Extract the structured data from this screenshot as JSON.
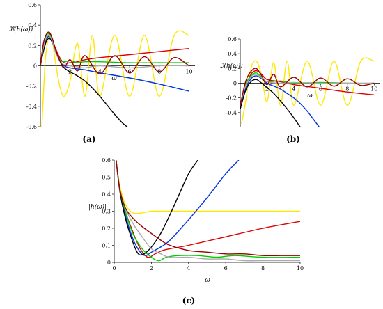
{
  "chart_data": [
    {
      "type": "line",
      "caption": "(a)",
      "ylabel": "ℜ(h(ω))",
      "xlabel": "ω",
      "xlim": [
        0,
        10.4
      ],
      "ylim": [
        -0.6,
        0.6
      ],
      "xticks": [
        2,
        4,
        6,
        8,
        10
      ],
      "yticks": [
        -0.6,
        -0.4,
        -0.2,
        0,
        0.2,
        0.4,
        0.6
      ],
      "series": [
        {
          "color": "#ffe800",
          "x": [
            0.1,
            0.3,
            0.45,
            0.6,
            0.8,
            1.0,
            1.3,
            1.6,
            2.0,
            2.5,
            3.0,
            3.5,
            4.0,
            5.0,
            6.0,
            7.0,
            8.0,
            9.0,
            10.0
          ],
          "y": [
            -0.6,
            0.0,
            0.2,
            0.32,
            0.25,
            0.05,
            -0.2,
            -0.3,
            -0.15,
            0.22,
            -0.3,
            0.3,
            -0.3,
            0.3,
            -0.3,
            0.3,
            -0.3,
            0.3,
            0.3
          ]
        },
        {
          "color": "#dd0000",
          "x": [
            0,
            0.2,
            0.4,
            0.6,
            0.8,
            1.0,
            1.3,
            1.6,
            2.0,
            2.5,
            3.0,
            4.0,
            6.0,
            8.0,
            10.0
          ],
          "y": [
            0,
            0.2,
            0.3,
            0.32,
            0.26,
            0.18,
            0.08,
            0.03,
            0.03,
            0.04,
            0.06,
            0.08,
            0.11,
            0.14,
            0.17
          ]
        },
        {
          "color": "#0033dd",
          "x": [
            0,
            0.2,
            0.4,
            0.6,
            0.8,
            1.0,
            1.3,
            1.6,
            2.0,
            2.5,
            3.0,
            4.0,
            6.0,
            8.0,
            10.0
          ],
          "y": [
            0,
            0.16,
            0.26,
            0.29,
            0.24,
            0.16,
            0.06,
            0.0,
            -0.02,
            -0.03,
            -0.04,
            -0.07,
            -0.12,
            -0.18,
            -0.25
          ]
        },
        {
          "color": "#000000",
          "x": [
            0,
            0.2,
            0.4,
            0.6,
            0.8,
            1.0,
            1.3,
            1.6,
            2.0,
            2.5,
            3.0,
            3.5,
            4.0,
            4.5,
            5.0,
            5.5,
            6.0
          ],
          "y": [
            0,
            0.14,
            0.24,
            0.27,
            0.23,
            0.15,
            0.05,
            -0.02,
            -0.06,
            -0.1,
            -0.15,
            -0.22,
            -0.3,
            -0.39,
            -0.48,
            -0.56,
            -0.62
          ]
        },
        {
          "color": "#00cc00",
          "x": [
            0,
            0.2,
            0.4,
            0.6,
            0.8,
            1.0,
            1.3,
            1.6,
            2.0,
            2.5,
            3.0,
            4.0,
            6.0,
            8.0,
            10.0
          ],
          "y": [
            0,
            0.2,
            0.3,
            0.31,
            0.25,
            0.15,
            0.06,
            0.04,
            0.05,
            0.03,
            0.04,
            0.04,
            0.03,
            0.03,
            0.03
          ]
        },
        {
          "color": "#aaaaaa",
          "x": [
            0,
            0.2,
            0.4,
            0.6,
            0.8,
            1.0,
            1.3,
            1.6,
            2.0,
            2.5,
            3.0,
            4.0,
            6.0,
            8.0,
            10.0
          ],
          "y": [
            0,
            0.18,
            0.28,
            0.3,
            0.24,
            0.14,
            0.05,
            0.01,
            0.0,
            -0.01,
            -0.02,
            0.0,
            -0.02,
            0.0,
            0.0
          ]
        },
        {
          "color": "#990000",
          "x": [
            0,
            0.2,
            0.4,
            0.6,
            0.8,
            1.0,
            1.3,
            1.6,
            2.0,
            2.5,
            3.0,
            4.0,
            5.0,
            6.0,
            7.0,
            8.0,
            9.0,
            10.0
          ],
          "y": [
            0,
            0.22,
            0.31,
            0.33,
            0.27,
            0.17,
            0.05,
            -0.02,
            0.06,
            -0.05,
            0.1,
            -0.08,
            0.1,
            -0.07,
            0.09,
            -0.06,
            0.08,
            0.0
          ]
        }
      ]
    },
    {
      "type": "line",
      "caption": "(b)",
      "ylabel": "ℑ(h(ω))",
      "xlabel": "ω",
      "xlim": [
        0,
        10.4
      ],
      "ylim": [
        -0.6,
        0.6
      ],
      "xticks": [
        2,
        4,
        6,
        8,
        10
      ],
      "yticks": [
        -0.4,
        -0.2,
        0,
        0.2,
        0.4,
        0.6
      ],
      "series": [
        {
          "color": "#ffe800",
          "x": [
            0.1,
            0.4,
            0.8,
            1.2,
            1.6,
            2.0,
            2.5,
            3.0,
            3.5,
            4.0,
            5.0,
            6.0,
            7.0,
            8.0,
            9.0,
            10.0
          ],
          "y": [
            -0.55,
            -0.25,
            0.2,
            0.3,
            0.1,
            -0.25,
            0.28,
            -0.3,
            0.3,
            -0.3,
            0.3,
            -0.3,
            0.3,
            -0.3,
            0.3,
            0.3
          ]
        },
        {
          "color": "#dd0000",
          "x": [
            0,
            0.4,
            0.8,
            1.2,
            1.6,
            2.0,
            3.0,
            4.0,
            6.0,
            8.0,
            10.0
          ],
          "y": [
            -0.3,
            -0.05,
            0.12,
            0.17,
            0.12,
            0.05,
            0.02,
            -0.02,
            -0.07,
            -0.12,
            -0.16
          ]
        },
        {
          "color": "#0033dd",
          "x": [
            0,
            0.4,
            0.8,
            1.2,
            1.6,
            2.0,
            2.5,
            3.0,
            3.5,
            4.0,
            4.5,
            5.0,
            5.5,
            6.0
          ],
          "y": [
            -0.35,
            -0.08,
            0.06,
            0.1,
            0.06,
            0.0,
            -0.04,
            -0.08,
            -0.14,
            -0.2,
            -0.28,
            -0.38,
            -0.5,
            -0.62
          ]
        },
        {
          "color": "#000000",
          "x": [
            0,
            0.4,
            0.8,
            1.2,
            1.6,
            2.0,
            2.5,
            3.0,
            3.5,
            4.0,
            4.5,
            5.0
          ],
          "y": [
            -0.35,
            -0.1,
            0.02,
            0.05,
            0.0,
            -0.06,
            -0.14,
            -0.24,
            -0.35,
            -0.47,
            -0.6,
            -0.72
          ]
        },
        {
          "color": "#00cc00",
          "x": [
            0,
            0.4,
            0.8,
            1.2,
            1.6,
            2.0,
            3.0,
            4.0,
            6.0,
            8.0,
            10.0
          ],
          "y": [
            -0.3,
            -0.02,
            0.1,
            0.14,
            0.08,
            0.02,
            0.03,
            0.0,
            0.01,
            0.0,
            0.0
          ]
        },
        {
          "color": "#aaaaaa",
          "x": [
            0,
            0.4,
            0.8,
            1.2,
            1.6,
            2.0,
            3.0,
            4.0,
            6.0,
            8.0,
            10.0
          ],
          "y": [
            -0.3,
            -0.04,
            0.08,
            0.12,
            0.07,
            0.02,
            0.0,
            0.01,
            0.0,
            0.0,
            0.0
          ]
        },
        {
          "color": "#990000",
          "x": [
            0,
            0.4,
            0.8,
            1.2,
            1.6,
            2.0,
            2.5,
            3.0,
            4.0,
            5.0,
            6.0,
            7.0,
            8.0,
            9.0,
            10.0
          ],
          "y": [
            -0.3,
            0.02,
            0.16,
            0.2,
            0.1,
            -0.02,
            0.12,
            -0.05,
            0.08,
            -0.05,
            0.07,
            -0.04,
            0.06,
            -0.03,
            0.0
          ]
        }
      ]
    },
    {
      "type": "line",
      "caption": "(c)",
      "ylabel": "|h(ω)|",
      "xlabel": "ω",
      "xlim": [
        0,
        10
      ],
      "ylim": [
        0,
        0.6
      ],
      "xticks": [
        0,
        2,
        4,
        6,
        8,
        10
      ],
      "yticks": [
        0,
        0.1,
        0.2,
        0.3,
        0.4,
        0.5,
        0.6
      ],
      "series": [
        {
          "color": "#ffe800",
          "x": [
            0.1,
            0.3,
            0.6,
            1.0,
            1.5,
            2.0,
            3.0,
            5.0,
            10.0
          ],
          "y": [
            0.6,
            0.45,
            0.34,
            0.29,
            0.29,
            0.3,
            0.3,
            0.3,
            0.3
          ]
        },
        {
          "color": "#dd0000",
          "x": [
            0.1,
            0.3,
            0.6,
            1.0,
            1.4,
            1.8,
            2.2,
            2.6,
            3.0,
            4.0,
            6.0,
            8.0,
            10.0
          ],
          "y": [
            0.6,
            0.43,
            0.3,
            0.18,
            0.08,
            0.03,
            0.05,
            0.07,
            0.08,
            0.1,
            0.15,
            0.2,
            0.24
          ]
        },
        {
          "color": "#0033dd",
          "x": [
            0.1,
            0.3,
            0.6,
            1.0,
            1.4,
            1.7,
            2.0,
            2.5,
            3.0,
            4.0,
            5.0,
            6.0,
            6.7
          ],
          "y": [
            0.6,
            0.43,
            0.28,
            0.14,
            0.06,
            0.04,
            0.06,
            0.09,
            0.13,
            0.25,
            0.38,
            0.52,
            0.6
          ]
        },
        {
          "color": "#000000",
          "x": [
            0.1,
            0.3,
            0.6,
            1.0,
            1.3,
            1.6,
            2.0,
            2.5,
            3.0,
            3.5,
            4.0,
            4.5
          ],
          "y": [
            0.6,
            0.42,
            0.26,
            0.12,
            0.05,
            0.05,
            0.09,
            0.17,
            0.28,
            0.4,
            0.52,
            0.6
          ]
        },
        {
          "color": "#00cc00",
          "x": [
            0.1,
            0.3,
            0.6,
            1.0,
            1.5,
            2.0,
            2.4,
            2.8,
            3.5,
            4.5,
            5.5,
            6.5,
            8.0,
            10.0
          ],
          "y": [
            0.6,
            0.43,
            0.3,
            0.17,
            0.08,
            0.03,
            0.01,
            0.03,
            0.04,
            0.04,
            0.03,
            0.04,
            0.03,
            0.03
          ]
        },
        {
          "color": "#aaaaaa",
          "x": [
            0.1,
            0.3,
            0.6,
            1.0,
            1.5,
            2.0,
            2.5,
            3.0,
            4.0,
            5.0,
            6.0,
            7.0,
            8.0,
            9.0,
            10.0
          ],
          "y": [
            0.6,
            0.43,
            0.32,
            0.23,
            0.15,
            0.08,
            0.05,
            0.03,
            0.03,
            0.02,
            0.02,
            0.01,
            0.01,
            0.01,
            0.01
          ]
        },
        {
          "color": "#990000",
          "x": [
            0.1,
            0.3,
            0.6,
            1.0,
            1.5,
            2.0,
            2.5,
            3.0,
            4.0,
            5.0,
            6.0,
            7.0,
            8.0,
            9.0,
            10.0
          ],
          "y": [
            0.6,
            0.43,
            0.32,
            0.26,
            0.21,
            0.17,
            0.13,
            0.1,
            0.07,
            0.06,
            0.05,
            0.05,
            0.04,
            0.04,
            0.04
          ]
        }
      ]
    }
  ]
}
